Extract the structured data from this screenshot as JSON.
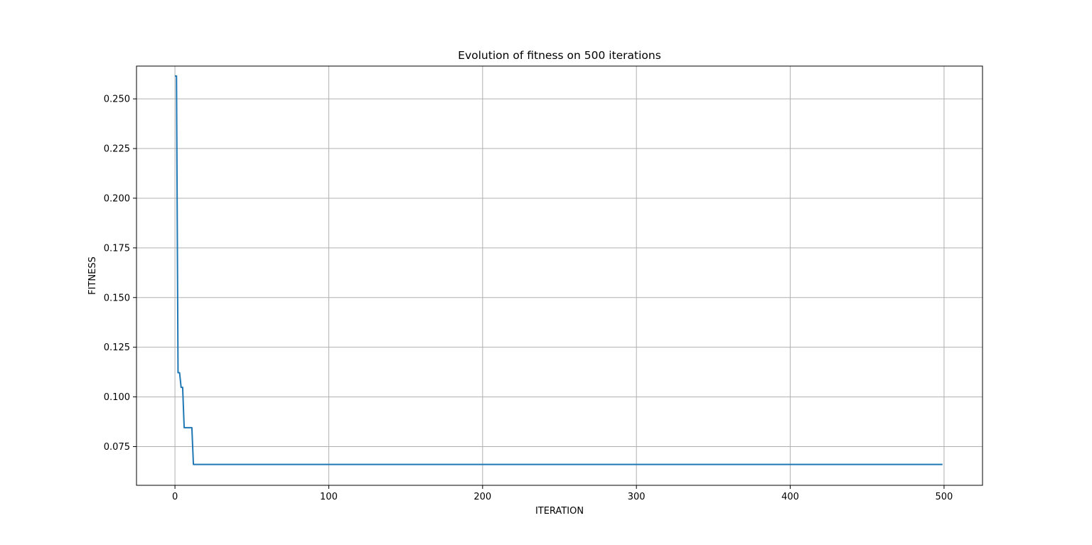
{
  "chart_data": {
    "type": "line",
    "title": "Evolution of fitness on 500 iterations",
    "xlabel": "ITERATION",
    "ylabel": "FITNESS",
    "xlim": [
      -25,
      525
    ],
    "ylim": [
      0.0555,
      0.2665
    ],
    "xticks": [
      0,
      100,
      200,
      300,
      400,
      500
    ],
    "yticks": [
      0.075,
      0.1,
      0.125,
      0.15,
      0.175,
      0.2,
      0.225,
      0.25
    ],
    "xtick_labels": [
      "0",
      "100",
      "200",
      "300",
      "400",
      "500"
    ],
    "ytick_labels": [
      "0.075",
      "0.100",
      "0.125",
      "0.150",
      "0.175",
      "0.200",
      "0.225",
      "0.250"
    ],
    "grid": true,
    "series": [
      {
        "color": "#1f77b4",
        "step": true,
        "points": [
          [
            0,
            0.2615
          ],
          [
            1,
            0.2615
          ],
          [
            2,
            0.1122
          ],
          [
            3,
            0.1122
          ],
          [
            4,
            0.1048
          ],
          [
            5,
            0.1048
          ],
          [
            6,
            0.0845
          ],
          [
            10,
            0.0845
          ],
          [
            11,
            0.0845
          ],
          [
            12,
            0.066
          ],
          [
            499,
            0.066
          ]
        ]
      }
    ]
  }
}
